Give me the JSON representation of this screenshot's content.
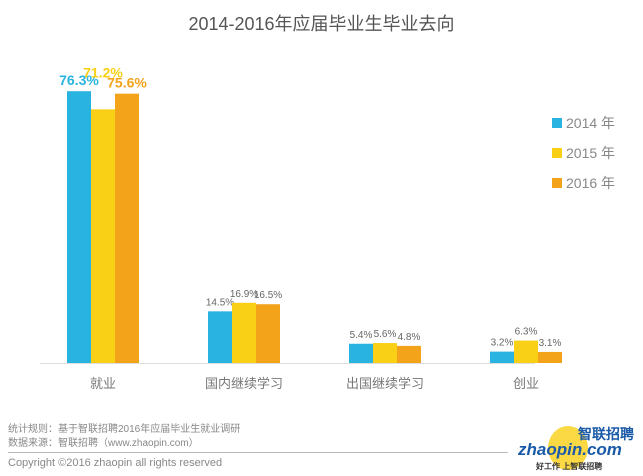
{
  "chart_data": {
    "type": "bar",
    "title": "2014-2016年应届毕业生毕业去向",
    "categories": [
      "就业",
      "国内继续学习",
      "出国继续学习",
      "创业"
    ],
    "series": [
      {
        "name": "2014 年",
        "color": "#29b3e0",
        "values": [
          76.3,
          14.5,
          5.4,
          3.2
        ],
        "labels": [
          "76.3%",
          "14.5%",
          "5.4%",
          "3.2%"
        ]
      },
      {
        "name": "2015 年",
        "color": "#f9d016",
        "values": [
          71.2,
          16.9,
          5.6,
          6.3
        ],
        "labels": [
          "71.2%",
          "16.9%",
          "5.6%",
          "6.3%"
        ]
      },
      {
        "name": "2016 年",
        "color": "#f3a31a",
        "values": [
          75.6,
          16.5,
          4.8,
          3.1
        ],
        "labels": [
          "75.6%",
          "16.5%",
          "4.8%",
          "3.1%"
        ]
      }
    ],
    "ylim": [
      0,
      80
    ],
    "grid": false,
    "legend": "right"
  },
  "footer": {
    "rule": "统计规则：基于智联招聘2016年应届毕业生就业调研",
    "source": "数据来源：智联招聘（www.zhaopin.com）",
    "copyright": "Copyright ©2016 zhaopin all rights reserved"
  },
  "logo": {
    "cn": "智联招聘",
    "en": "zhaopin.com",
    "slogan": "好工作 上智联招聘"
  }
}
